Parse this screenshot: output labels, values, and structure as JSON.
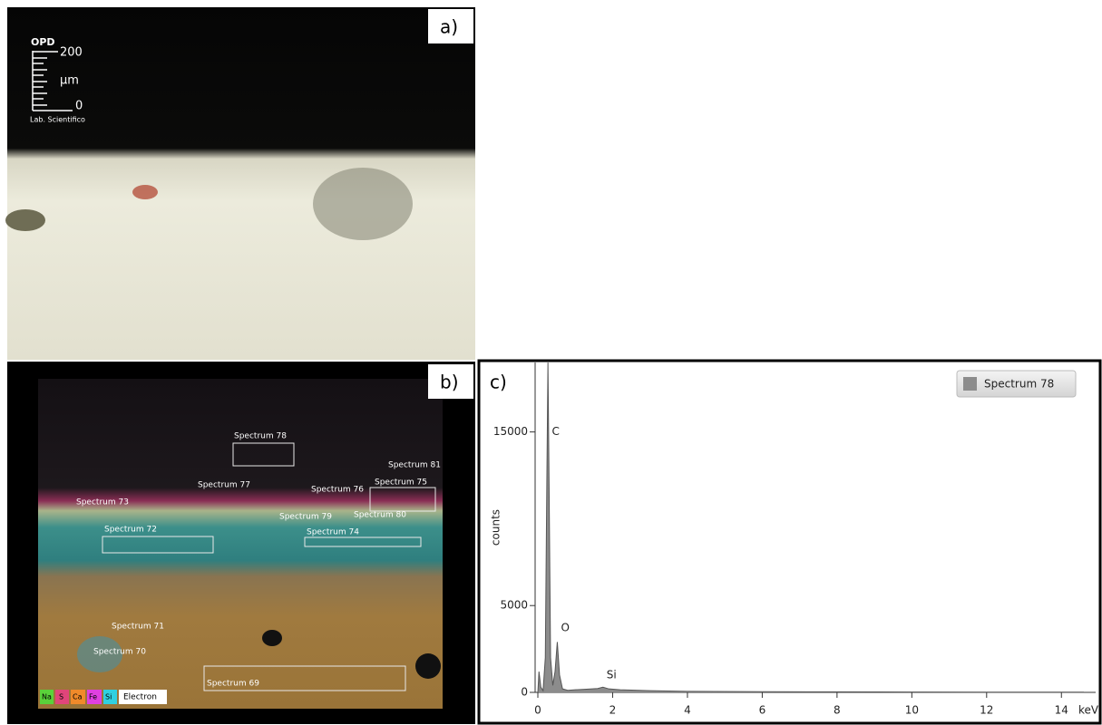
{
  "panels": {
    "a": {
      "label": "a)",
      "scale": {
        "brand": "OPD",
        "max": "200",
        "unit": "µm",
        "min": "0",
        "lab": "Lab. Scientifico"
      }
    },
    "b": {
      "label": "b)",
      "spectra": [
        "Spectrum 78",
        "Spectrum 77",
        "Spectrum 76",
        "Spectrum 75",
        "Spectrum 81",
        "Spectrum 73",
        "Spectrum 79",
        "Spectrum 80",
        "Spectrum 72",
        "Spectrum 74",
        "Spectrum 71",
        "Spectrum 70",
        "Spectrum 69"
      ],
      "elements": [
        "Na",
        "S",
        "Ca",
        "Fe",
        "Si",
        "Electron"
      ]
    },
    "c": {
      "label": "c)"
    }
  },
  "chart_data": {
    "type": "area",
    "y_label": "counts",
    "x_unit": "keV",
    "x": [
      0,
      0.03,
      0.08,
      0.14,
      0.2,
      0.24,
      0.27,
      0.3,
      0.34,
      0.4,
      0.46,
      0.52,
      0.58,
      0.66,
      0.8,
      1.0,
      1.3,
      1.6,
      1.74,
      1.9,
      2.2,
      3,
      4,
      6,
      8,
      10,
      12,
      14,
      14.6
    ],
    "series": [
      {
        "name": "Spectrum 78",
        "color": "#8c8c8c",
        "values": [
          0,
          1200,
          300,
          100,
          2000,
          12000,
          19000,
          12000,
          2000,
          400,
          1200,
          2900,
          1000,
          200,
          120,
          150,
          180,
          220,
          300,
          200,
          150,
          100,
          60,
          40,
          30,
          20,
          15,
          10,
          10
        ]
      }
    ],
    "annotations": [
      {
        "text": "C",
        "x": 0.28,
        "y": 15000
      },
      {
        "text": "O",
        "x": 0.52,
        "y": 3700
      },
      {
        "text": "Si",
        "x": 1.74,
        "y": 1000
      }
    ],
    "xlim": [
      0,
      14.6
    ],
    "ylim": [
      0,
      19000
    ],
    "xticks": [
      0,
      2,
      4,
      6,
      8,
      10,
      12,
      14
    ],
    "yticks": [
      0,
      5000,
      15000
    ]
  }
}
